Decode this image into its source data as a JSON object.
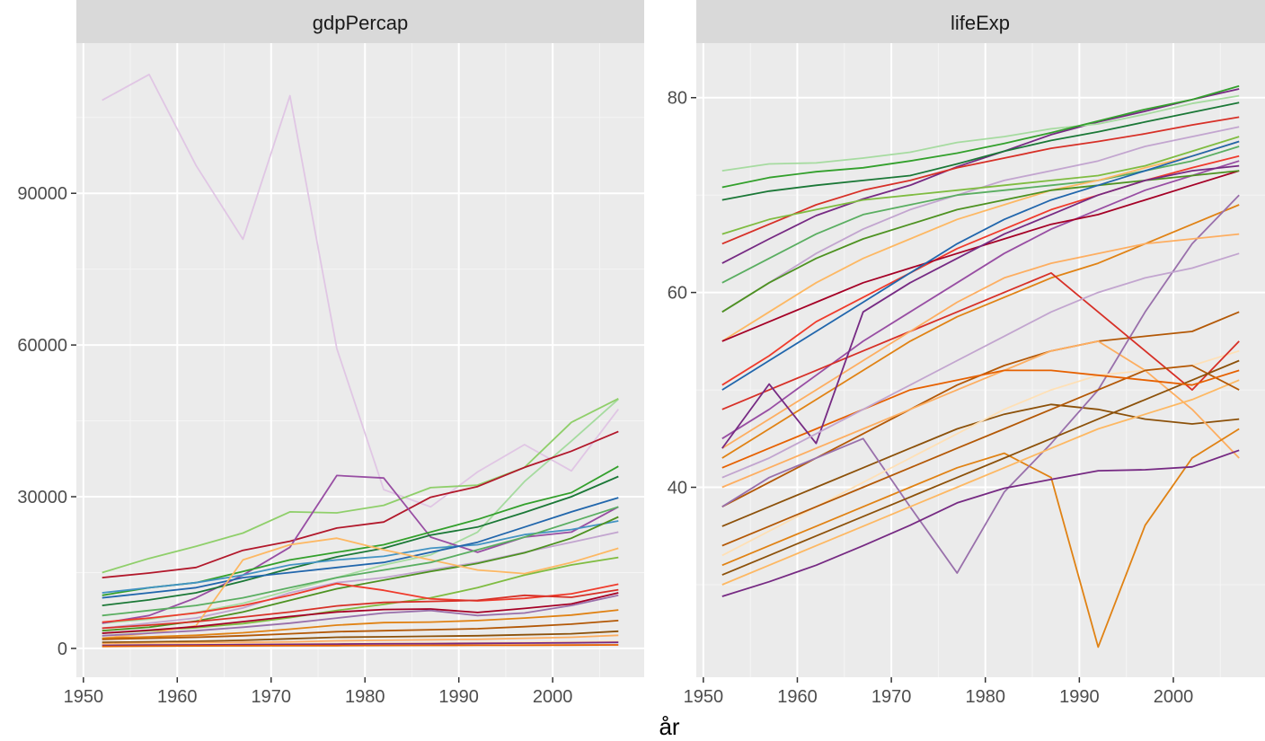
{
  "chart_data": [
    {
      "type": "line",
      "facet": "gdpPercap",
      "x_ticks": [
        1950,
        1960,
        1970,
        1980,
        1990,
        2000
      ],
      "y_ticks": [
        0,
        30000,
        60000,
        90000
      ],
      "x_tick_labels": [
        "1950",
        "1960",
        "1970",
        "1980",
        "1990",
        "2000"
      ],
      "y_tick_labels": [
        "0",
        "30000",
        "60000",
        "90000"
      ],
      "xlim": [
        1949.25,
        2009.75
      ],
      "ylim": [
        -5700,
        119700
      ],
      "grid": true,
      "years": [
        1952,
        1957,
        1962,
        1967,
        1972,
        1977,
        1982,
        1987,
        1992,
        1997,
        2002,
        2007
      ],
      "series": [
        {
          "color": "#e0c6e4",
          "values": [
            108400,
            113500,
            95500,
            80900,
            109300,
            59300,
            31400,
            28000,
            34900,
            40300,
            35100,
            47300
          ]
        },
        {
          "color": "#a6dba0",
          "values": [
            5000,
            5800,
            7100,
            8900,
            11500,
            14000,
            16500,
            18500,
            23000,
            33000,
            41000,
            49300
          ]
        },
        {
          "color": "#8fcf6a",
          "values": [
            15000,
            17800,
            20200,
            22800,
            27000,
            26800,
            28300,
            31800,
            32300,
            35800,
            44700,
            49400
          ]
        },
        {
          "color": "#b2182b",
          "values": [
            14000,
            14900,
            16000,
            19400,
            21200,
            23800,
            25000,
            29900,
            32000,
            35800,
            39000,
            42900
          ]
        },
        {
          "color": "#984ea3",
          "values": [
            5000,
            6500,
            10000,
            14500,
            20000,
            34200,
            33700,
            22000,
            19000,
            22000,
            23000,
            28000
          ]
        },
        {
          "color": "#33a02c",
          "values": [
            10500,
            12000,
            13000,
            15200,
            17500,
            19000,
            20500,
            23000,
            25500,
            28500,
            30800,
            36000
          ]
        },
        {
          "color": "#1b7837",
          "values": [
            8500,
            9600,
            11000,
            13300,
            15800,
            18100,
            19800,
            22400,
            24000,
            26900,
            30000,
            34000
          ]
        },
        {
          "color": "#4393c3",
          "values": [
            11000,
            12000,
            13000,
            14500,
            16500,
            17500,
            18200,
            19800,
            20500,
            22500,
            23500,
            25200
          ]
        },
        {
          "color": "#2166ac",
          "values": [
            10000,
            11000,
            12000,
            14000,
            15000,
            16000,
            17000,
            19000,
            21000,
            24000,
            27000,
            29800
          ]
        },
        {
          "color": "#c2a5cf",
          "values": [
            4000,
            5000,
            6000,
            8000,
            11000,
            13000,
            14000,
            15500,
            17000,
            19000,
            21000,
            23000
          ]
        },
        {
          "color": "#4d9221",
          "values": [
            3500,
            4200,
            5400,
            7200,
            9500,
            11800,
            13500,
            15200,
            16800,
            18900,
            21800,
            26000
          ]
        },
        {
          "color": "#7fbc41",
          "values": [
            3000,
            3500,
            4100,
            4900,
            6100,
            7500,
            8700,
            10000,
            12000,
            14500,
            16500,
            18000
          ]
        },
        {
          "color": "#fdb863",
          "values": [
            2000,
            3000,
            4500,
            17500,
            20500,
            21800,
            19500,
            17500,
            15500,
            14800,
            17000,
            19800
          ]
        },
        {
          "color": "#ef3b2c",
          "values": [
            5200,
            6000,
            7000,
            8500,
            10500,
            12800,
            11500,
            9800,
            9400,
            9900,
            10800,
            12700
          ]
        },
        {
          "color": "#d73027",
          "values": [
            4000,
            4600,
            5300,
            6200,
            7200,
            8400,
            9100,
            9300,
            9500,
            10500,
            10100,
            11600
          ]
        },
        {
          "color": "#a50026",
          "values": [
            3000,
            3600,
            4300,
            5300,
            6300,
            7200,
            7700,
            7800,
            7100,
            7900,
            8800,
            11000
          ]
        },
        {
          "color": "#e08214",
          "values": [
            2000,
            2300,
            2600,
            3100,
            3800,
            4600,
            5100,
            5200,
            5500,
            6000,
            6600,
            7600
          ]
        },
        {
          "color": "#b35806",
          "values": [
            1800,
            2000,
            2200,
            2500,
            2900,
            3300,
            3500,
            3700,
            3900,
            4300,
            4800,
            5500
          ]
        },
        {
          "color": "#8c510a",
          "values": [
            1200,
            1300,
            1400,
            1600,
            1900,
            2200,
            2300,
            2400,
            2500,
            2700,
            2900,
            3400
          ]
        },
        {
          "color": "#fdae61",
          "values": [
            900,
            1000,
            1100,
            1200,
            1300,
            1500,
            1600,
            1700,
            1800,
            2000,
            2200,
            2600
          ]
        },
        {
          "color": "#fee0b6",
          "values": [
            700,
            800,
            850,
            900,
            950,
            1000,
            1050,
            1100,
            1150,
            1200,
            1300,
            1400
          ]
        },
        {
          "color": "#762a83",
          "values": [
            600,
            650,
            700,
            750,
            800,
            850,
            900,
            950,
            1000,
            1050,
            1100,
            1200
          ]
        },
        {
          "color": "#e66101",
          "values": [
            400,
            450,
            500,
            520,
            540,
            560,
            580,
            600,
            620,
            640,
            660,
            700
          ]
        },
        {
          "color": "#5aae61",
          "values": [
            6500,
            7500,
            8500,
            10000,
            12000,
            14000,
            15500,
            17000,
            19500,
            22000,
            25000,
            28000
          ]
        },
        {
          "color": "#9970ab",
          "values": [
            2500,
            3000,
            3500,
            4200,
            5000,
            6000,
            7000,
            7500,
            6500,
            7000,
            8500,
            10500
          ]
        }
      ]
    },
    {
      "type": "line",
      "facet": "lifeExp",
      "x_ticks": [
        1950,
        1960,
        1970,
        1980,
        1990,
        2000
      ],
      "y_ticks": [
        40,
        60,
        80
      ],
      "x_tick_labels": [
        "1950",
        "1960",
        "1970",
        "1980",
        "1990",
        "2000"
      ],
      "y_tick_labels": [
        "40",
        "60",
        "80"
      ],
      "xlim": [
        1949.25,
        2009.75
      ],
      "ylim": [
        20.5,
        85.6
      ],
      "grid": true,
      "years": [
        1952,
        1957,
        1962,
        1967,
        1972,
        1977,
        1982,
        1987,
        1992,
        1997,
        2002,
        2007
      ],
      "series": [
        {
          "color": "#762a83",
          "values": [
            63.0,
            65.5,
            67.9,
            69.6,
            71.0,
            72.9,
            74.5,
            76.2,
            77.5,
            78.6,
            79.8,
            80.9
          ]
        },
        {
          "color": "#1b7837",
          "values": [
            69.5,
            70.4,
            71.0,
            71.5,
            72.0,
            73.2,
            74.5,
            75.6,
            76.5,
            77.5,
            78.5,
            79.5
          ]
        },
        {
          "color": "#a6dba0",
          "values": [
            72.5,
            73.2,
            73.3,
            73.8,
            74.4,
            75.4,
            76.0,
            76.8,
            77.3,
            78.3,
            79.4,
            80.2
          ]
        },
        {
          "color": "#33a02c",
          "values": [
            70.8,
            71.8,
            72.4,
            72.8,
            73.5,
            74.3,
            75.3,
            76.4,
            77.6,
            78.8,
            79.8,
            81.2
          ]
        },
        {
          "color": "#d73027",
          "values": [
            65.0,
            67.0,
            69.0,
            70.5,
            71.5,
            72.8,
            73.8,
            74.8,
            75.5,
            76.3,
            77.2,
            78.0
          ]
        },
        {
          "color": "#c2a5cf",
          "values": [
            58.0,
            61.0,
            64.0,
            66.5,
            68.5,
            70.0,
            71.5,
            72.5,
            73.5,
            75.0,
            76.0,
            77.0
          ]
        },
        {
          "color": "#5aae61",
          "values": [
            61.0,
            63.5,
            66.0,
            68.0,
            69.0,
            70.0,
            70.5,
            71.0,
            71.5,
            72.5,
            73.5,
            75.0
          ]
        },
        {
          "color": "#fdb863",
          "values": [
            55.0,
            58.0,
            61.0,
            63.5,
            65.5,
            67.5,
            69.0,
            70.5,
            71.5,
            72.8,
            74.0,
            75.5
          ]
        },
        {
          "color": "#984ea3",
          "values": [
            45.0,
            48.0,
            51.5,
            55.0,
            58.0,
            61.0,
            64.0,
            66.5,
            68.5,
            70.5,
            72.0,
            73.5
          ]
        },
        {
          "color": "#ef3b2c",
          "values": [
            50.5,
            53.5,
            57.0,
            59.5,
            62.0,
            64.5,
            66.5,
            68.5,
            70.0,
            71.5,
            72.8,
            74.0
          ]
        },
        {
          "color": "#e08214",
          "values": [
            43.0,
            46.0,
            49.0,
            52.0,
            55.0,
            57.5,
            59.5,
            61.5,
            63.0,
            65.0,
            67.0,
            69.0
          ]
        },
        {
          "color": "#b35806",
          "values": [
            38.0,
            40.5,
            43.0,
            45.5,
            48.0,
            50.5,
            52.5,
            54.0,
            55.0,
            55.5,
            56.0,
            58.0
          ]
        },
        {
          "color": "#8c510a",
          "values": [
            36.0,
            38.0,
            40.0,
            42.0,
            44.0,
            46.0,
            47.5,
            48.5,
            48.0,
            47.0,
            46.5,
            47.0
          ]
        },
        {
          "color": "#fdae61",
          "values": [
            40.0,
            42.0,
            44.0,
            46.0,
            48.0,
            50.0,
            52.0,
            54.0,
            55.0,
            52.0,
            48.0,
            43.0
          ]
        },
        {
          "color": "#e08214",
          "values": [
            32.0,
            34.0,
            36.0,
            38.0,
            40.0,
            42.0,
            43.5,
            41.0,
            23.6,
            36.1,
            43.0,
            46.0
          ]
        },
        {
          "color": "#9970ab",
          "values": [
            38.0,
            41.0,
            43.0,
            45.0,
            38.0,
            31.2,
            39.5,
            44.5,
            50.0,
            58.0,
            65.0,
            70.0
          ]
        },
        {
          "color": "#762a83",
          "values": [
            28.8,
            30.3,
            32.0,
            34.0,
            36.1,
            38.4,
            39.9,
            40.8,
            41.7,
            41.8,
            42.1,
            43.8
          ]
        },
        {
          "color": "#fdb863",
          "values": [
            30.0,
            32.0,
            34.0,
            36.0,
            38.0,
            40.0,
            42.0,
            44.0,
            46.0,
            47.5,
            49.0,
            51.0
          ]
        },
        {
          "color": "#fee0b6",
          "values": [
            33.0,
            35.5,
            38.0,
            40.5,
            43.0,
            45.5,
            48.0,
            50.0,
            51.5,
            52.0,
            52.5,
            54.0
          ]
        },
        {
          "color": "#a50026",
          "values": [
            55.0,
            57.0,
            59.0,
            61.0,
            62.5,
            64.0,
            65.5,
            67.0,
            68.0,
            69.5,
            71.0,
            72.5
          ]
        },
        {
          "color": "#4d9221",
          "values": [
            58.0,
            61.0,
            63.5,
            65.5,
            67.0,
            68.5,
            69.5,
            70.5,
            71.0,
            71.5,
            72.0,
            72.5
          ]
        },
        {
          "color": "#d73027",
          "values": [
            48.0,
            50.0,
            52.0,
            54.0,
            56.0,
            58.0,
            60.0,
            62.0,
            58.0,
            54.0,
            50.0,
            55.0
          ]
        },
        {
          "color": "#b35806",
          "values": [
            34.0,
            36.0,
            38.0,
            40.0,
            42.0,
            44.0,
            46.0,
            48.0,
            50.0,
            52.0,
            52.5,
            50.0
          ]
        },
        {
          "color": "#8c510a",
          "values": [
            31.0,
            33.0,
            35.0,
            37.0,
            39.0,
            41.0,
            43.0,
            45.0,
            47.0,
            49.0,
            51.0,
            53.0
          ]
        },
        {
          "color": "#e66101",
          "values": [
            42.0,
            44.0,
            46.0,
            48.0,
            50.0,
            51.0,
            52.0,
            52.0,
            51.5,
            51.0,
            50.5,
            52.0
          ]
        },
        {
          "color": "#2166ac",
          "values": [
            50.0,
            53.0,
            56.0,
            59.0,
            62.0,
            65.0,
            67.5,
            69.5,
            71.0,
            72.5,
            74.0,
            75.5
          ]
        },
        {
          "color": "#7fbc41",
          "values": [
            66.0,
            67.5,
            68.5,
            69.5,
            70.0,
            70.5,
            71.0,
            71.5,
            72.0,
            73.0,
            74.5,
            76.0
          ]
        },
        {
          "color": "#fdae61",
          "values": [
            44.0,
            47.0,
            50.0,
            53.0,
            56.0,
            59.0,
            61.5,
            63.0,
            64.0,
            65.0,
            65.5,
            66.0
          ]
        },
        {
          "color": "#762a83",
          "values": [
            44.0,
            50.6,
            44.5,
            58.0,
            61.0,
            63.5,
            66.0,
            68.0,
            70.0,
            71.5,
            72.5,
            73.0
          ]
        },
        {
          "color": "#c2a5cf",
          "values": [
            41.0,
            43.0,
            45.5,
            48.0,
            50.5,
            53.0,
            55.5,
            58.0,
            60.0,
            61.5,
            62.5,
            64.0
          ]
        }
      ]
    }
  ],
  "panels": [
    {
      "strip": "gdpPercap"
    },
    {
      "strip": "lifeExp"
    }
  ],
  "xlabel": "år",
  "colors": {
    "panel_bg": "#ebebeb",
    "strip_bg": "#d9d9d9",
    "grid_major": "#ffffff",
    "grid_minor": "#f5f5f5"
  }
}
